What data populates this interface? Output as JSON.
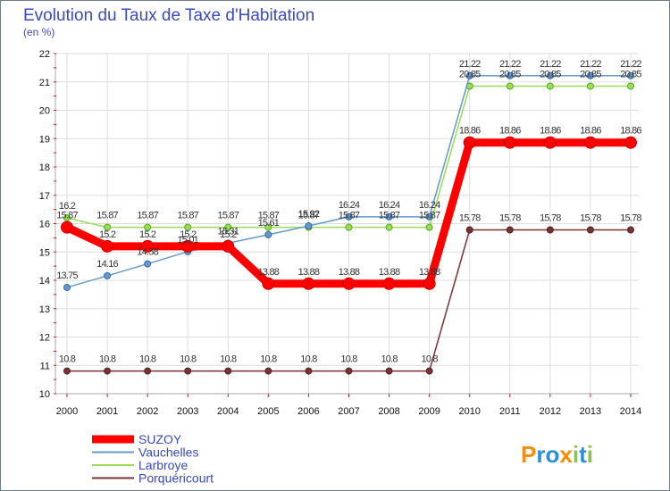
{
  "chart_data": {
    "type": "line",
    "title": "Evolution du Taux de Taxe d'Habitation",
    "ylabel": "(en %)",
    "xlabel": "",
    "ylim": [
      10,
      22
    ],
    "yticks": [
      10,
      11,
      12,
      13,
      14,
      15,
      16,
      17,
      18,
      19,
      20,
      21,
      22
    ],
    "grid": "y",
    "legend_position": "bottom-left",
    "categories": [
      "2000",
      "2001",
      "2002",
      "2003",
      "2004",
      "2005",
      "2006",
      "2007",
      "2008",
      "2009",
      "2010",
      "2011",
      "2012",
      "2013",
      "2014"
    ],
    "series": [
      {
        "name": "SUZOY",
        "color": "#ff0000",
        "emphasis": "thick",
        "values": [
          15.87,
          15.2,
          15.2,
          15.2,
          15.2,
          13.88,
          13.88,
          13.88,
          13.88,
          13.88,
          18.86,
          18.86,
          18.86,
          18.86,
          18.86
        ]
      },
      {
        "name": "Vauchelles",
        "color": "#6699cc",
        "values": [
          13.75,
          14.16,
          14.58,
          15.01,
          15.31,
          15.61,
          15.92,
          16.24,
          16.24,
          16.24,
          21.22,
          21.22,
          21.22,
          21.22,
          21.22
        ]
      },
      {
        "name": "Larbroye",
        "color": "#99dd55",
        "values": [
          16.2,
          15.87,
          15.87,
          15.87,
          15.87,
          15.87,
          15.87,
          15.87,
          15.87,
          15.87,
          20.85,
          20.85,
          20.85,
          20.85,
          20.85
        ]
      },
      {
        "name": "Porquéricourt",
        "color": "#773333",
        "values": [
          10.8,
          10.8,
          10.8,
          10.8,
          10.8,
          10.8,
          10.8,
          10.8,
          10.8,
          10.8,
          15.78,
          15.78,
          15.78,
          15.78,
          15.78
        ]
      }
    ]
  },
  "brand": {
    "letters": [
      "P",
      "r",
      "o",
      "x",
      "i",
      "t",
      "i"
    ],
    "colors": [
      "#ff8c00",
      "#2a8fd6",
      "#2a8fd6",
      "#ff8c00",
      "#8bc34a",
      "#2a8fd6",
      "#8bc34a"
    ]
  }
}
